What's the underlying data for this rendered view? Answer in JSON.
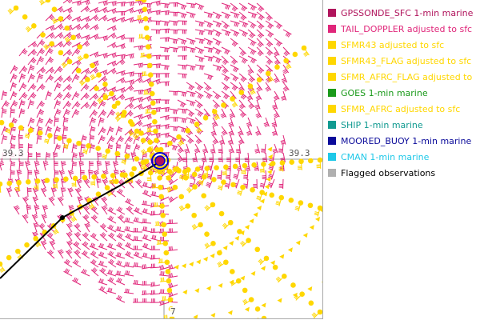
{
  "map": {
    "grid_label_top_left": "39.3",
    "grid_label_top_right": "39.3",
    "grid_label_bottom": "7"
  },
  "legend": {
    "items": [
      {
        "label": "GPSSONDE_SFC 1-min marine",
        "color": "#b0145c"
      },
      {
        "label": "TAIL_DOPPLER adjusted to sfc",
        "color": "#e0267a"
      },
      {
        "label": "SFMR43 adjusted to sfc",
        "color": "#ffd700"
      },
      {
        "label": "SFMR43_FLAG adjusted to sfc",
        "color": "#ffd700"
      },
      {
        "label": "SFMR_AFRC_FLAG adjusted to",
        "color": "#ffd700"
      },
      {
        "label": "GOES 1-min marine",
        "color": "#1a9a1a"
      },
      {
        "label": "SFMR_AFRC adjusted to sfc",
        "color": "#ffd700"
      },
      {
        "label": "SHIP 1-min marine",
        "color": "#109a90"
      },
      {
        "label": "MOORED_BUOY 1-min marine",
        "color": "#0a0a9a"
      },
      {
        "label": "CMAN 1-min marine",
        "color": "#1ec8e8"
      },
      {
        "label": "Flagged observations",
        "color": "#b0b0b0",
        "text_color": "#000000"
      }
    ]
  },
  "colors": {
    "tail_doppler": "#e0267a",
    "sfmr": "#ffd700",
    "track": "#000000",
    "center_marker": "#0000cc",
    "center_fill": "#b0145c"
  }
}
